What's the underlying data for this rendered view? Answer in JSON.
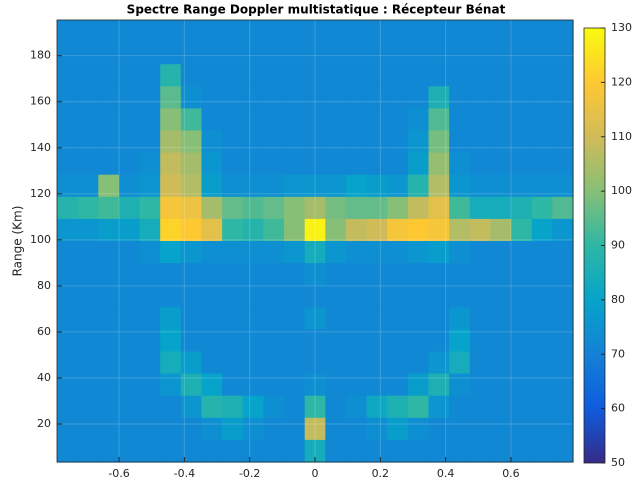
{
  "chart_data": {
    "type": "heatmap",
    "title": "Spectre Range Doppler multistatique : Récepteur Bénat",
    "ylabel": "Range (Km)",
    "xlim": [
      -0.79,
      0.79
    ],
    "ylim": [
      3.5,
      195.5
    ],
    "xticks": [
      -0.6,
      -0.4,
      -0.2,
      0,
      0.2,
      0.4,
      0.6
    ],
    "yticks": [
      20,
      40,
      60,
      80,
      100,
      120,
      140,
      160,
      180
    ],
    "grid": true,
    "origin": "upper",
    "clim": [
      50,
      130
    ],
    "cticks": [
      50,
      60,
      70,
      80,
      90,
      100,
      110,
      120,
      130
    ],
    "colormap": [
      "#352a87",
      "#0f5cdd",
      "#1481d6",
      "#06a4ca",
      "#2eb7a4",
      "#87bf77",
      "#d1bb59",
      "#fec832",
      "#f9fb0e"
    ],
    "z": [
      [
        72,
        72,
        72,
        72,
        72,
        72,
        72,
        72,
        72,
        72,
        72,
        72,
        72,
        72,
        72,
        72,
        72,
        72,
        72,
        72,
        72,
        72,
        72,
        72,
        72
      ],
      [
        72,
        72,
        72,
        72,
        72,
        72,
        72,
        72,
        72,
        72,
        72,
        72,
        72,
        72,
        72,
        72,
        72,
        72,
        72,
        72,
        72,
        72,
        72,
        72,
        72
      ],
      [
        72,
        72,
        72,
        72,
        72,
        88,
        72,
        72,
        72,
        72,
        72,
        72,
        72,
        72,
        72,
        72,
        72,
        72,
        72,
        72,
        72,
        72,
        72,
        72,
        72
      ],
      [
        72,
        72,
        72,
        72,
        72,
        95,
        74,
        72,
        72,
        72,
        72,
        72,
        72,
        72,
        72,
        72,
        72,
        72,
        86,
        72,
        72,
        72,
        72,
        72,
        72
      ],
      [
        72,
        72,
        72,
        72,
        72,
        100,
        92,
        72,
        72,
        72,
        72,
        72,
        72,
        72,
        72,
        72,
        72,
        74,
        94,
        72,
        72,
        72,
        72,
        72,
        72
      ],
      [
        72,
        72,
        72,
        72,
        72,
        104,
        100,
        74,
        72,
        72,
        72,
        72,
        72,
        72,
        72,
        72,
        72,
        76,
        98,
        72,
        72,
        72,
        72,
        72,
        72
      ],
      [
        72,
        72,
        72,
        72,
        74,
        108,
        104,
        76,
        72,
        72,
        72,
        72,
        72,
        72,
        72,
        72,
        72,
        78,
        102,
        74,
        72,
        72,
        72,
        72,
        72
      ],
      [
        74,
        74,
        100,
        74,
        76,
        110,
        106,
        78,
        74,
        74,
        74,
        76,
        76,
        76,
        80,
        78,
        76,
        88,
        106,
        76,
        74,
        74,
        74,
        74,
        74
      ],
      [
        88,
        90,
        92,
        86,
        90,
        118,
        116,
        104,
        96,
        94,
        96,
        100,
        104,
        98,
        96,
        96,
        100,
        108,
        114,
        92,
        84,
        84,
        86,
        90,
        94
      ],
      [
        76,
        76,
        78,
        78,
        84,
        122,
        120,
        114,
        90,
        88,
        92,
        100,
        128,
        100,
        108,
        110,
        118,
        120,
        118,
        106,
        108,
        104,
        90,
        80,
        76
      ],
      [
        72,
        72,
        72,
        72,
        74,
        80,
        76,
        74,
        74,
        74,
        74,
        76,
        84,
        76,
        74,
        74,
        74,
        76,
        78,
        74,
        72,
        72,
        72,
        72,
        72
      ],
      [
        72,
        72,
        72,
        72,
        72,
        72,
        72,
        72,
        72,
        72,
        72,
        72,
        74,
        72,
        72,
        72,
        72,
        72,
        72,
        72,
        72,
        72,
        72,
        72,
        72
      ],
      [
        72,
        72,
        72,
        72,
        72,
        72,
        72,
        72,
        72,
        72,
        72,
        72,
        72,
        72,
        72,
        72,
        72,
        72,
        72,
        72,
        72,
        72,
        72,
        72,
        72
      ],
      [
        72,
        72,
        72,
        72,
        72,
        78,
        72,
        72,
        72,
        72,
        72,
        72,
        76,
        72,
        72,
        72,
        72,
        72,
        72,
        76,
        72,
        72,
        72,
        72,
        72
      ],
      [
        72,
        72,
        72,
        72,
        72,
        80,
        72,
        72,
        72,
        72,
        72,
        72,
        72,
        72,
        72,
        72,
        72,
        72,
        72,
        80,
        72,
        72,
        72,
        72,
        72
      ],
      [
        72,
        72,
        72,
        72,
        72,
        84,
        78,
        72,
        72,
        72,
        72,
        72,
        72,
        72,
        72,
        72,
        72,
        72,
        76,
        84,
        72,
        72,
        72,
        72,
        72
      ],
      [
        72,
        72,
        72,
        72,
        72,
        76,
        86,
        80,
        72,
        72,
        72,
        72,
        74,
        72,
        72,
        72,
        72,
        78,
        86,
        74,
        72,
        72,
        72,
        72,
        72
      ],
      [
        72,
        72,
        72,
        72,
        72,
        72,
        76,
        88,
        86,
        80,
        74,
        72,
        90,
        72,
        74,
        82,
        86,
        90,
        76,
        72,
        72,
        72,
        72,
        72,
        72
      ],
      [
        72,
        72,
        72,
        72,
        72,
        72,
        72,
        74,
        78,
        74,
        72,
        72,
        108,
        72,
        72,
        74,
        78,
        74,
        72,
        72,
        72,
        72,
        72,
        72,
        72
      ],
      [
        72,
        72,
        72,
        72,
        72,
        72,
        72,
        72,
        72,
        72,
        72,
        72,
        84,
        72,
        72,
        72,
        72,
        72,
        72,
        72,
        72,
        72,
        72,
        72,
        72
      ]
    ]
  }
}
